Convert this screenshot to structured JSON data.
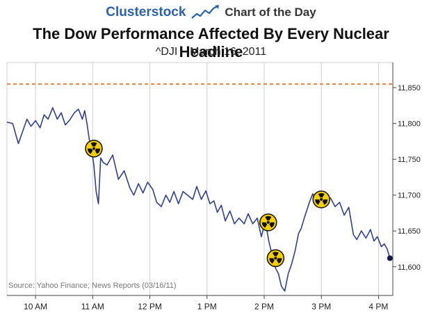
{
  "header": {
    "brand": "Clusterstock",
    "tagline": "Chart of the Day",
    "brand_color": "#2b62a6"
  },
  "chart_data": {
    "type": "line",
    "title": "The Dow Performance Affected By Every Nuclear Headline",
    "subtitle": "^DJI – March 16, 2011",
    "source": "Source: Yahoo Finance; News Reports (03/16/11)",
    "xlabel": "",
    "ylabel": "",
    "x_ticks": [
      {
        "h": 10.0,
        "label": "10 AM"
      },
      {
        "h": 11.0,
        "label": "11 AM"
      },
      {
        "h": 12.0,
        "label": "12 PM"
      },
      {
        "h": 13.0,
        "label": "1 PM"
      },
      {
        "h": 14.0,
        "label": "2 PM"
      },
      {
        "h": 15.0,
        "label": "3 PM"
      },
      {
        "h": 16.0,
        "label": "4 PM"
      }
    ],
    "xlim": [
      9.5,
      16.25
    ],
    "y_ticks": [
      {
        "v": 11600,
        "label": "11,600"
      },
      {
        "v": 11650,
        "label": "11,650"
      },
      {
        "v": 11700,
        "label": "11,700"
      },
      {
        "v": 11750,
        "label": "11,750"
      },
      {
        "v": 11800,
        "label": "11,800"
      },
      {
        "v": 11850,
        "label": "11,850"
      }
    ],
    "ylim": [
      11560,
      11885
    ],
    "reference_line": {
      "value": 11855,
      "style": "dashed",
      "color": "#e8843a"
    },
    "line_color": "#2e3f8f",
    "series": [
      {
        "name": "^DJI",
        "x": [
          9.5,
          9.6,
          9.7,
          9.78,
          9.85,
          9.92,
          10.0,
          10.08,
          10.15,
          10.22,
          10.3,
          10.38,
          10.45,
          10.52,
          10.6,
          10.68,
          10.75,
          10.82,
          10.86,
          10.9,
          10.94,
          10.98,
          11.02,
          11.06,
          11.1,
          11.14,
          11.18,
          11.25,
          11.35,
          11.45,
          11.55,
          11.65,
          11.72,
          11.8,
          11.88,
          11.96,
          12.05,
          12.12,
          12.2,
          12.28,
          12.35,
          12.42,
          12.5,
          12.58,
          12.66,
          12.75,
          12.82,
          12.9,
          12.98,
          13.05,
          13.12,
          13.18,
          13.25,
          13.32,
          13.4,
          13.48,
          13.56,
          13.65,
          13.72,
          13.8,
          13.88,
          13.95,
          14.02,
          14.08,
          14.14,
          14.2,
          14.25,
          14.3,
          14.36,
          14.42,
          14.48,
          14.54,
          14.6,
          14.65,
          14.7,
          14.75,
          14.8,
          14.85,
          14.9,
          14.95,
          15.0,
          15.08,
          15.16,
          15.24,
          15.32,
          15.4,
          15.48,
          15.56,
          15.62,
          15.7,
          15.78,
          15.86,
          15.92,
          15.98,
          16.05,
          16.1,
          16.15,
          16.2
        ],
        "values": [
          11802,
          11800,
          11772,
          11790,
          11806,
          11796,
          11804,
          11794,
          11812,
          11806,
          11822,
          11806,
          11815,
          11798,
          11805,
          11815,
          11820,
          11806,
          11818,
          11800,
          11778,
          11764,
          11742,
          11705,
          11688,
          11752,
          11746,
          11742,
          11756,
          11722,
          11734,
          11710,
          11700,
          11716,
          11703,
          11718,
          11708,
          11690,
          11684,
          11700,
          11690,
          11705,
          11688,
          11705,
          11700,
          11694,
          11712,
          11694,
          11706,
          11688,
          11692,
          11676,
          11686,
          11664,
          11678,
          11660,
          11668,
          11660,
          11674,
          11660,
          11668,
          11642,
          11664,
          11636,
          11616,
          11598,
          11590,
          11573,
          11566,
          11590,
          11604,
          11622,
          11646,
          11654,
          11668,
          11680,
          11692,
          11702,
          11690,
          11700,
          11694,
          11690,
          11696,
          11684,
          11690,
          11672,
          11683,
          11645,
          11638,
          11650,
          11640,
          11652,
          11636,
          11642,
          11628,
          11632,
          11625,
          11612
        ]
      }
    ],
    "annotations": [
      {
        "x": 11.02,
        "y": 11765,
        "label": "radiation-symbol"
      },
      {
        "x": 14.07,
        "y": 11662,
        "label": "radiation-symbol"
      },
      {
        "x": 14.2,
        "y": 11612,
        "label": "radiation-symbol"
      },
      {
        "x": 15.0,
        "y": 11694,
        "label": "radiation-symbol"
      }
    ],
    "endpoint": {
      "x": 16.2,
      "y": 11612
    }
  }
}
